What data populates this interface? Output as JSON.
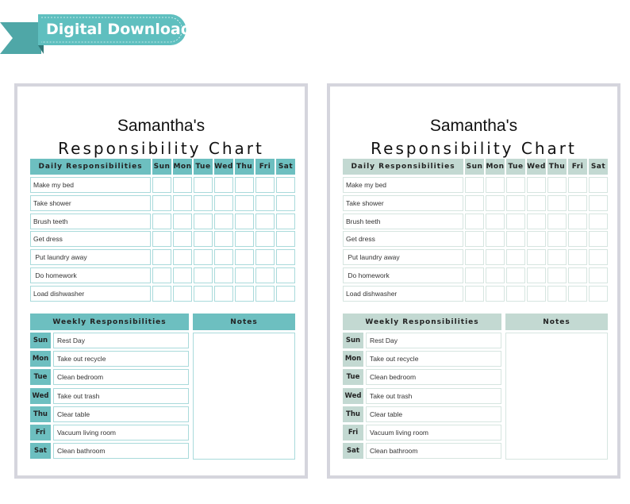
{
  "banner": {
    "label": "Digital Download",
    "color": "#5fbfbf"
  },
  "chart": {
    "name": "Samantha's",
    "title": "Responsibility Chart",
    "daily_header": "Daily Responsibilities",
    "days": [
      "Sun",
      "Mon",
      "Tue",
      "Wed",
      "Thu",
      "Fri",
      "Sat"
    ],
    "daily_tasks": [
      "Make my bed",
      "Take shower",
      "Brush teeth",
      "Get dress",
      " Put laundry away",
      " Do homework",
      "Load dishwasher"
    ],
    "weekly_header": "Weekly Responsibilities",
    "notes_header": "Notes",
    "weekly_tasks": [
      "Rest Day",
      "Take out recycle",
      "Clean bedroom",
      "Take out trash",
      "Clear table",
      "Vacuum living room",
      "Clean bathroom"
    ]
  },
  "themes": [
    {
      "accent": "#6dbfc0",
      "light": "#a9dadb"
    },
    {
      "accent": "#c3d9d2",
      "light": "#d6e5e0"
    }
  ]
}
